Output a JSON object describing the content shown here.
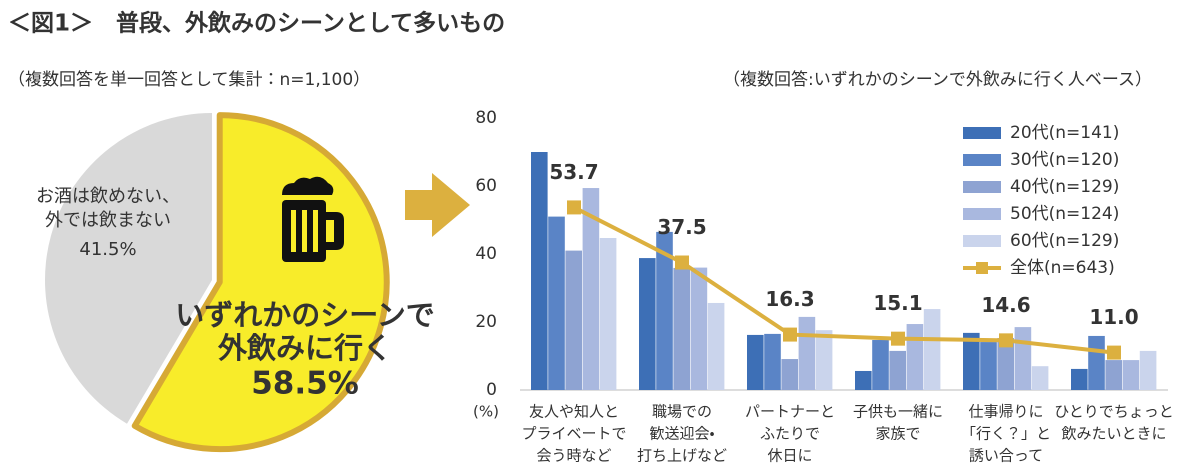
{
  "title": "＜図1＞　普段、外飲みのシーンとして多いもの",
  "chart_data": [
    {
      "type": "pie",
      "subtitle": "（複数回答を単一回答として集計：n=1,100）",
      "categories": [
        [
          "いずれかのシーンで",
          "外飲みに行く"
        ],
        [
          "お酒は飲めない、",
          "外では飲まない"
        ]
      ],
      "values": [
        58.5,
        41.5
      ],
      "value_labels": [
        "58.5%",
        "41.5%"
      ],
      "colors": [
        "#f8ec2a",
        "#d9d9d9"
      ],
      "edge_color": "#d6a935"
    },
    {
      "type": "bar",
      "subtitle": "（複数回答:いずれかのシーンで外飲みに行く人ベース）",
      "ylabel": "(%)",
      "categories": [
        [
          "友人や知人と",
          "プライベートで",
          "会う時など"
        ],
        [
          "職場での",
          "歓送迎会・",
          "打ち上げなど"
        ],
        [
          "パートナーと",
          "ふたりで",
          "休日に"
        ],
        [
          "子供も一緒に",
          "家族で"
        ],
        [
          "仕事帰りに",
          "「行く？」と",
          "誘い合って"
        ],
        [
          "ひとりでちょっと",
          "飲みたいときに"
        ]
      ],
      "series": [
        {
          "name": "20代(n=141)",
          "color": "#3d6fb6",
          "values": [
            70.0,
            38.8,
            16.2,
            5.6,
            16.8,
            6.2
          ]
        },
        {
          "name": "30代(n=120)",
          "color": "#5a84c6",
          "values": [
            51.0,
            46.5,
            16.5,
            14.7,
            14.1,
            15.9
          ]
        },
        {
          "name": "40代(n=129)",
          "color": "#8ea3d2",
          "values": [
            41.0,
            35.9,
            9.1,
            11.5,
            15.3,
            8.8
          ]
        },
        {
          "name": "50代(n=124)",
          "color": "#a9b8df",
          "values": [
            59.4,
            36.0,
            21.5,
            19.4,
            18.5,
            8.8
          ]
        },
        {
          "name": "60代(n=129)",
          "color": "#cad4ec",
          "values": [
            44.7,
            25.6,
            17.6,
            23.8,
            7.0,
            11.5
          ]
        },
        {
          "name": "全体(n=643)",
          "color": "#dcb03f",
          "type": "line",
          "values": [
            53.7,
            37.5,
            16.3,
            15.1,
            14.6,
            11.0
          ],
          "value_labels": [
            "53.7",
            "37.5",
            "16.3",
            "15.1",
            "14.6",
            "11.0"
          ]
        }
      ],
      "ylim": [
        0,
        80
      ],
      "yticks": [
        0,
        20,
        40,
        60,
        80
      ],
      "grid": false,
      "legend": "upper right"
    }
  ]
}
